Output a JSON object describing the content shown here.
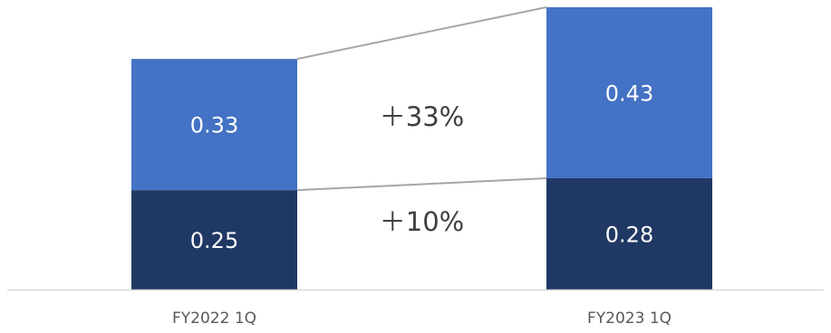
{
  "chart_data": {
    "type": "bar",
    "stacked": true,
    "categories": [
      "FY2022 1Q",
      "FY2023 1Q"
    ],
    "series": [
      {
        "values": [
          0.25,
          0.28
        ],
        "color": "#203864"
      },
      {
        "values": [
          0.33,
          0.43
        ],
        "color": "#4472c4"
      }
    ],
    "annotations": [
      {
        "text": "＋10%",
        "series_index": 0
      },
      {
        "text": "＋33%",
        "series_index": 1
      }
    ],
    "ylim": [
      0,
      0.71
    ],
    "title": "",
    "xlabel": "",
    "ylabel": "",
    "grid": false,
    "legend": "none",
    "axis_color": "#d9d9d9",
    "connector_color": "#a6a6a6"
  }
}
